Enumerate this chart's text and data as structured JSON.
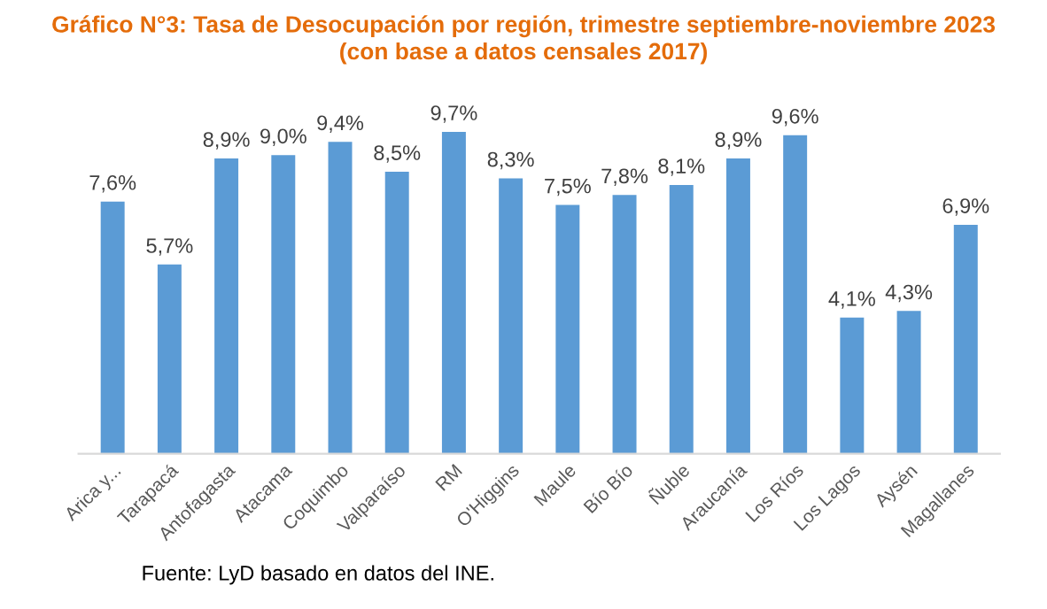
{
  "chart_data": {
    "type": "bar",
    "title": "Gráfico N°3: Tasa de Desocupación por región, trimestre septiembre-noviembre 2023\n(con base a datos censales 2017)",
    "categories": [
      "Arica y...",
      "Tarapacá",
      "Antofagasta",
      "Atacama",
      "Coquimbo",
      "Valparaíso",
      "RM",
      "O'Higgins",
      "Maule",
      "Bío Bío",
      "Ñuble",
      "Araucanía",
      "Los Ríos",
      "Los Lagos",
      "Aysén",
      "Magallanes"
    ],
    "values": [
      7.6,
      5.7,
      8.9,
      9.0,
      9.4,
      8.5,
      9.7,
      8.3,
      7.5,
      7.8,
      8.1,
      8.9,
      9.6,
      4.1,
      4.3,
      6.9
    ],
    "value_labels": [
      "7,6%",
      "5,7%",
      "8,9%",
      "9,0%",
      "9,4%",
      "8,5%",
      "9,7%",
      "8,3%",
      "7,5%",
      "7,8%",
      "8,1%",
      "8,9%",
      "9,6%",
      "4,1%",
      "4,3%",
      "6,9%"
    ],
    "color": "#5b9bd5",
    "grid": false,
    "legend": false,
    "annotations": [
      "Fuente: LyD basado en datos del INE."
    ]
  }
}
